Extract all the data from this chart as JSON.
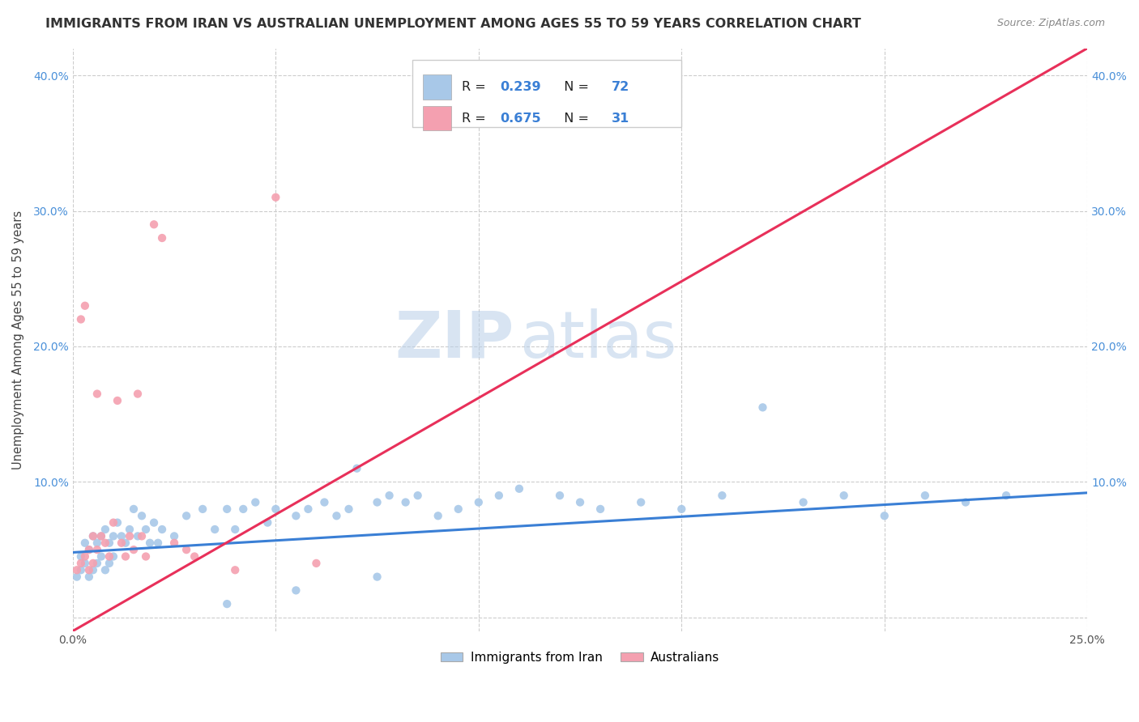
{
  "title": "IMMIGRANTS FROM IRAN VS AUSTRALIAN UNEMPLOYMENT AMONG AGES 55 TO 59 YEARS CORRELATION CHART",
  "source": "Source: ZipAtlas.com",
  "ylabel": "Unemployment Among Ages 55 to 59 years",
  "xlim": [
    0.0,
    0.25
  ],
  "ylim": [
    -0.01,
    0.42
  ],
  "blue_color": "#a8c8e8",
  "pink_color": "#f4a0b0",
  "blue_line_color": "#3a7fd5",
  "pink_line_color": "#e8305a",
  "R_blue": 0.239,
  "N_blue": 72,
  "R_pink": 0.675,
  "N_pink": 31,
  "watermark_zip": "ZIP",
  "watermark_atlas": "atlas",
  "legend_label_blue": "Immigrants from Iran",
  "legend_label_pink": "Australians",
  "blue_x": [
    0.001,
    0.002,
    0.002,
    0.003,
    0.003,
    0.004,
    0.004,
    0.005,
    0.005,
    0.006,
    0.006,
    0.007,
    0.007,
    0.008,
    0.008,
    0.009,
    0.009,
    0.01,
    0.01,
    0.011,
    0.012,
    0.013,
    0.014,
    0.015,
    0.016,
    0.017,
    0.018,
    0.019,
    0.02,
    0.021,
    0.022,
    0.025,
    0.028,
    0.032,
    0.035,
    0.038,
    0.04,
    0.042,
    0.045,
    0.048,
    0.05,
    0.055,
    0.058,
    0.062,
    0.065,
    0.068,
    0.07,
    0.075,
    0.078,
    0.082,
    0.085,
    0.09,
    0.095,
    0.1,
    0.105,
    0.11,
    0.12,
    0.125,
    0.13,
    0.14,
    0.15,
    0.16,
    0.17,
    0.18,
    0.19,
    0.2,
    0.21,
    0.22,
    0.23,
    0.038,
    0.055,
    0.075
  ],
  "blue_y": [
    0.03,
    0.035,
    0.045,
    0.04,
    0.055,
    0.03,
    0.05,
    0.035,
    0.06,
    0.04,
    0.055,
    0.045,
    0.06,
    0.035,
    0.065,
    0.04,
    0.055,
    0.045,
    0.06,
    0.07,
    0.06,
    0.055,
    0.065,
    0.08,
    0.06,
    0.075,
    0.065,
    0.055,
    0.07,
    0.055,
    0.065,
    0.06,
    0.075,
    0.08,
    0.065,
    0.08,
    0.065,
    0.08,
    0.085,
    0.07,
    0.08,
    0.075,
    0.08,
    0.085,
    0.075,
    0.08,
    0.11,
    0.085,
    0.09,
    0.085,
    0.09,
    0.075,
    0.08,
    0.085,
    0.09,
    0.095,
    0.09,
    0.085,
    0.08,
    0.085,
    0.08,
    0.09,
    0.155,
    0.085,
    0.09,
    0.075,
    0.09,
    0.085,
    0.09,
    0.01,
    0.02,
    0.03
  ],
  "pink_x": [
    0.001,
    0.002,
    0.002,
    0.003,
    0.003,
    0.004,
    0.004,
    0.005,
    0.005,
    0.006,
    0.006,
    0.007,
    0.008,
    0.009,
    0.01,
    0.011,
    0.012,
    0.013,
    0.014,
    0.015,
    0.016,
    0.017,
    0.018,
    0.02,
    0.022,
    0.025,
    0.028,
    0.03,
    0.04,
    0.05,
    0.06
  ],
  "pink_y": [
    0.035,
    0.04,
    0.22,
    0.045,
    0.23,
    0.035,
    0.05,
    0.04,
    0.06,
    0.05,
    0.165,
    0.06,
    0.055,
    0.045,
    0.07,
    0.16,
    0.055,
    0.045,
    0.06,
    0.05,
    0.165,
    0.06,
    0.045,
    0.29,
    0.28,
    0.055,
    0.05,
    0.045,
    0.035,
    0.31,
    0.04
  ],
  "blue_trend_x": [
    0.0,
    0.25
  ],
  "blue_trend_y": [
    0.048,
    0.092
  ],
  "pink_trend_x": [
    0.0,
    0.25
  ],
  "pink_trend_y": [
    -0.01,
    0.42
  ]
}
